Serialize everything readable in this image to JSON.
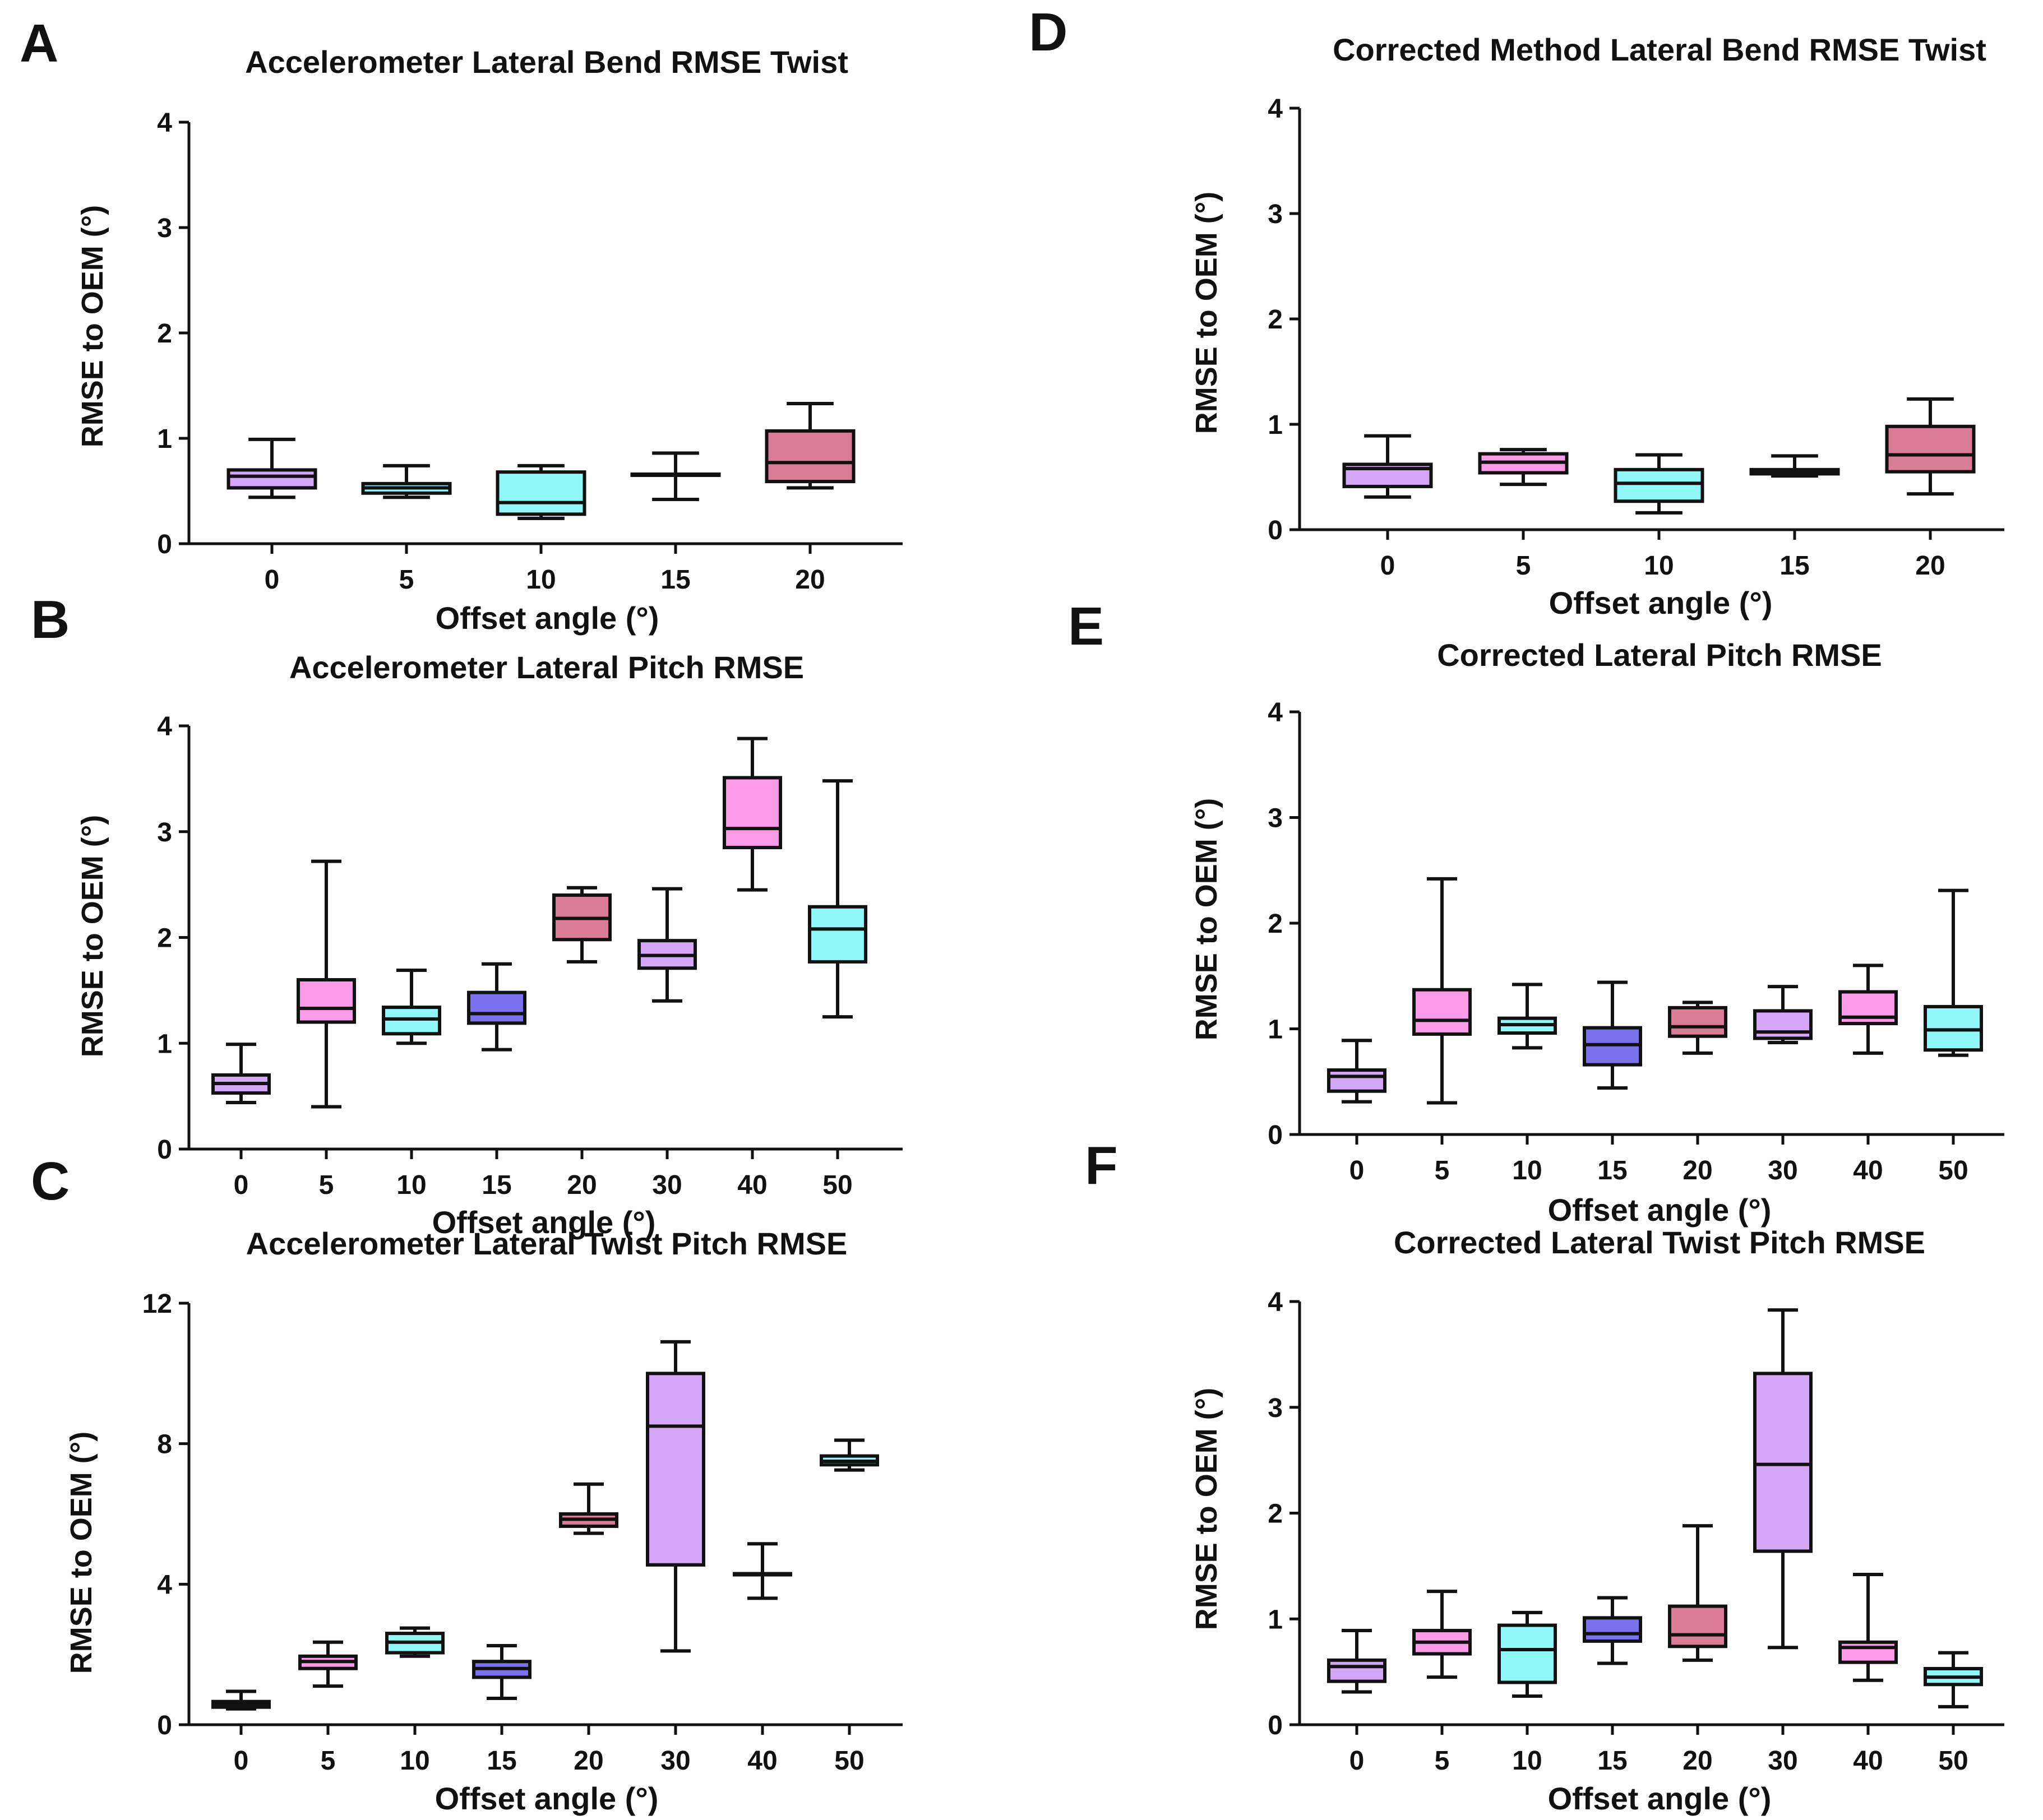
{
  "colors": {
    "lavender": "#d4a6f8",
    "pink": "#fb9ae6",
    "cyan": "#8ff9f9",
    "blue": "#7a72ef",
    "rose": "#da7c98",
    "black": "#111111"
  },
  "chart_data": [
    {
      "panel": "A",
      "type": "boxplot",
      "title": "Accelerometer Lateral Bend RMSE Twist",
      "xlabel": "Offset angle (°)",
      "ylabel": "RMSE to OEM (°)",
      "ylim": [
        0,
        4
      ],
      "yticks": [
        0,
        1,
        2,
        3,
        4
      ],
      "categories": [
        "0",
        "5",
        "10",
        "15",
        "20"
      ],
      "boxes": [
        {
          "min": 0.44,
          "q1": 0.53,
          "median": 0.64,
          "q3": 0.7,
          "max": 0.99,
          "color": "lavender"
        },
        {
          "min": 0.44,
          "q1": 0.48,
          "median": 0.53,
          "q3": 0.57,
          "max": 0.74,
          "color": "cyan"
        },
        {
          "min": 0.24,
          "q1": 0.28,
          "median": 0.39,
          "q3": 0.68,
          "max": 0.74,
          "color": "cyan"
        },
        {
          "min": 0.42,
          "q1": 0.65,
          "median": 0.65,
          "q3": 0.66,
          "max": 0.86,
          "color": "cyan"
        },
        {
          "min": 0.53,
          "q1": 0.59,
          "median": 0.77,
          "q3": 1.07,
          "max": 1.33,
          "color": "rose"
        }
      ]
    },
    {
      "panel": "B",
      "type": "boxplot",
      "title": "Accelerometer Lateral Pitch RMSE",
      "xlabel": "Offset angle (°)",
      "ylabel": "RMSE to OEM (°)",
      "ylim": [
        0,
        4
      ],
      "yticks": [
        0,
        1,
        2,
        3,
        4
      ],
      "categories": [
        "0",
        "5",
        "10",
        "15",
        "20",
        "30",
        "40",
        "50"
      ],
      "boxes": [
        {
          "min": 0.44,
          "q1": 0.53,
          "median": 0.62,
          "q3": 0.7,
          "max": 0.99,
          "color": "lavender"
        },
        {
          "min": 0.4,
          "q1": 1.2,
          "median": 1.33,
          "q3": 1.6,
          "max": 2.72,
          "color": "pink"
        },
        {
          "min": 1.0,
          "q1": 1.09,
          "median": 1.23,
          "q3": 1.34,
          "max": 1.69,
          "color": "cyan"
        },
        {
          "min": 0.94,
          "q1": 1.19,
          "median": 1.28,
          "q3": 1.48,
          "max": 1.75,
          "color": "blue"
        },
        {
          "min": 1.77,
          "q1": 1.98,
          "median": 2.18,
          "q3": 2.4,
          "max": 2.47,
          "color": "rose"
        },
        {
          "min": 1.4,
          "q1": 1.71,
          "median": 1.83,
          "q3": 1.97,
          "max": 2.46,
          "color": "lavender"
        },
        {
          "min": 2.45,
          "q1": 2.85,
          "median": 3.03,
          "q3": 3.51,
          "max": 3.88,
          "color": "pink"
        },
        {
          "min": 1.25,
          "q1": 1.77,
          "median": 2.08,
          "q3": 2.29,
          "max": 3.48,
          "color": "cyan"
        }
      ]
    },
    {
      "panel": "C",
      "type": "boxplot",
      "title": "Accelerometer Lateral Twist Pitch RMSE",
      "xlabel": "Offset angle (°)",
      "ylabel": "RMSE to OEM (°)",
      "ylim": [
        0,
        12
      ],
      "yticks": [
        0,
        4,
        8,
        12
      ],
      "categories": [
        "0",
        "5",
        "10",
        "15",
        "20",
        "30",
        "40",
        "50"
      ],
      "boxes": [
        {
          "min": 0.45,
          "q1": 0.5,
          "median": 0.58,
          "q3": 0.66,
          "max": 0.95,
          "color": "lavender"
        },
        {
          "min": 1.1,
          "q1": 1.6,
          "median": 1.8,
          "q3": 1.95,
          "max": 2.35,
          "color": "pink"
        },
        {
          "min": 1.95,
          "q1": 2.05,
          "median": 2.35,
          "q3": 2.6,
          "max": 2.75,
          "color": "cyan"
        },
        {
          "min": 0.75,
          "q1": 1.35,
          "median": 1.6,
          "q3": 1.8,
          "max": 2.25,
          "color": "blue"
        },
        {
          "min": 5.45,
          "q1": 5.65,
          "median": 5.85,
          "q3": 6.0,
          "max": 6.85,
          "color": "rose"
        },
        {
          "min": 2.1,
          "q1": 4.55,
          "median": 8.5,
          "q3": 10.0,
          "max": 10.9,
          "color": "lavender"
        },
        {
          "min": 3.6,
          "q1": 4.3,
          "median": 4.3,
          "q3": 4.3,
          "max": 5.15,
          "color": "pink"
        },
        {
          "min": 7.25,
          "q1": 7.4,
          "median": 7.5,
          "q3": 7.65,
          "max": 8.1,
          "color": "cyan"
        }
      ]
    },
    {
      "panel": "D",
      "type": "boxplot",
      "title": "Corrected Method Lateral Bend RMSE Twist",
      "xlabel": "Offset angle (°)",
      "ylabel": "RMSE to OEM (°)",
      "ylim": [
        0,
        4
      ],
      "yticks": [
        0,
        1,
        2,
        3,
        4
      ],
      "categories": [
        "0",
        "5",
        "10",
        "15",
        "20"
      ],
      "boxes": [
        {
          "min": 0.31,
          "q1": 0.41,
          "median": 0.58,
          "q3": 0.62,
          "max": 0.89,
          "color": "lavender"
        },
        {
          "min": 0.43,
          "q1": 0.54,
          "median": 0.64,
          "q3": 0.72,
          "max": 0.76,
          "color": "pink"
        },
        {
          "min": 0.16,
          "q1": 0.27,
          "median": 0.44,
          "q3": 0.57,
          "max": 0.71,
          "color": "cyan"
        },
        {
          "min": 0.51,
          "q1": 0.53,
          "median": 0.55,
          "q3": 0.57,
          "max": 0.7,
          "color": "cyan"
        },
        {
          "min": 0.34,
          "q1": 0.55,
          "median": 0.71,
          "q3": 0.98,
          "max": 1.24,
          "color": "rose"
        }
      ]
    },
    {
      "panel": "E",
      "type": "boxplot",
      "title": "Corrected Lateral Pitch RMSE",
      "xlabel": "Offset angle (°)",
      "ylabel": "RMSE to OEM (°)",
      "ylim": [
        0,
        4
      ],
      "yticks": [
        0,
        1,
        2,
        3,
        4
      ],
      "categories": [
        "0",
        "5",
        "10",
        "15",
        "20",
        "30",
        "40",
        "50"
      ],
      "boxes": [
        {
          "min": 0.31,
          "q1": 0.41,
          "median": 0.55,
          "q3": 0.61,
          "max": 0.89,
          "color": "lavender"
        },
        {
          "min": 0.3,
          "q1": 0.95,
          "median": 1.08,
          "q3": 1.37,
          "max": 2.42,
          "color": "pink"
        },
        {
          "min": 0.82,
          "q1": 0.96,
          "median": 1.04,
          "q3": 1.1,
          "max": 1.42,
          "color": "cyan"
        },
        {
          "min": 0.44,
          "q1": 0.66,
          "median": 0.85,
          "q3": 1.01,
          "max": 1.44,
          "color": "blue"
        },
        {
          "min": 0.77,
          "q1": 0.93,
          "median": 1.02,
          "q3": 1.2,
          "max": 1.25,
          "color": "rose"
        },
        {
          "min": 0.87,
          "q1": 0.91,
          "median": 0.97,
          "q3": 1.17,
          "max": 1.4,
          "color": "lavender"
        },
        {
          "min": 0.77,
          "q1": 1.05,
          "median": 1.11,
          "q3": 1.35,
          "max": 1.6,
          "color": "pink"
        },
        {
          "min": 0.75,
          "q1": 0.8,
          "median": 0.99,
          "q3": 1.21,
          "max": 2.31,
          "color": "cyan"
        }
      ]
    },
    {
      "panel": "F",
      "type": "boxplot",
      "title": "Corrected Lateral Twist Pitch RMSE",
      "xlabel": "Offset angle (°)",
      "ylabel": "RMSE to OEM (°)",
      "ylim": [
        0,
        4
      ],
      "yticks": [
        0,
        1,
        2,
        3,
        4
      ],
      "categories": [
        "0",
        "5",
        "10",
        "15",
        "20",
        "30",
        "40",
        "50"
      ],
      "boxes": [
        {
          "min": 0.31,
          "q1": 0.41,
          "median": 0.55,
          "q3": 0.61,
          "max": 0.89,
          "color": "lavender"
        },
        {
          "min": 0.45,
          "q1": 0.67,
          "median": 0.78,
          "q3": 0.89,
          "max": 1.26,
          "color": "pink"
        },
        {
          "min": 0.27,
          "q1": 0.4,
          "median": 0.71,
          "q3": 0.94,
          "max": 1.06,
          "color": "cyan"
        },
        {
          "min": 0.58,
          "q1": 0.79,
          "median": 0.86,
          "q3": 1.01,
          "max": 1.2,
          "color": "blue"
        },
        {
          "min": 0.61,
          "q1": 0.74,
          "median": 0.85,
          "q3": 1.12,
          "max": 1.88,
          "color": "rose"
        },
        {
          "min": 0.73,
          "q1": 1.64,
          "median": 2.46,
          "q3": 3.32,
          "max": 3.92,
          "color": "lavender"
        },
        {
          "min": 0.42,
          "q1": 0.59,
          "median": 0.73,
          "q3": 0.78,
          "max": 1.42,
          "color": "pink"
        },
        {
          "min": 0.17,
          "q1": 0.38,
          "median": 0.45,
          "q3": 0.53,
          "max": 0.68,
          "color": "cyan"
        }
      ]
    }
  ]
}
